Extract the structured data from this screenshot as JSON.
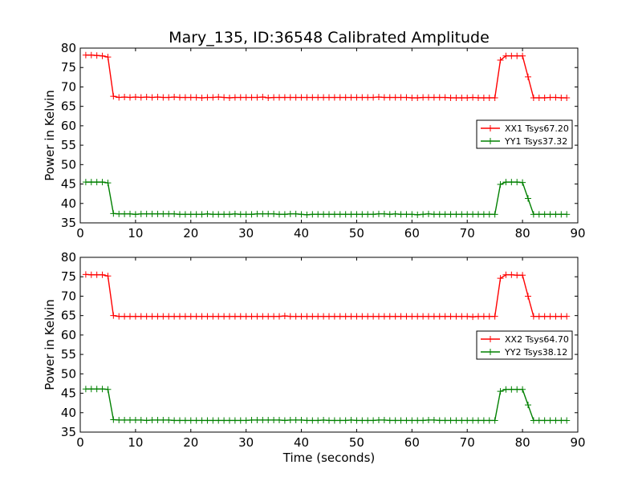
{
  "chart_data": [
    {
      "type": "line",
      "title": "Mary_135, ID:36548 Calibrated Amplitude",
      "xlabel": "",
      "ylabel": "Power in Kelvin",
      "xlim": [
        0,
        90
      ],
      "ylim": [
        35,
        80
      ],
      "xticks": [
        0,
        10,
        20,
        30,
        40,
        50,
        60,
        70,
        80,
        90
      ],
      "yticks": [
        35,
        40,
        45,
        50,
        55,
        60,
        65,
        70,
        75,
        80
      ],
      "legend_position": "right",
      "x": [
        1,
        2,
        3,
        4,
        5,
        6,
        7,
        8,
        9,
        10,
        11,
        12,
        13,
        14,
        15,
        16,
        17,
        18,
        19,
        20,
        21,
        22,
        23,
        24,
        25,
        26,
        27,
        28,
        29,
        30,
        31,
        32,
        33,
        34,
        35,
        36,
        37,
        38,
        39,
        40,
        41,
        42,
        43,
        44,
        45,
        46,
        47,
        48,
        49,
        50,
        51,
        52,
        53,
        54,
        55,
        56,
        57,
        58,
        59,
        60,
        61,
        62,
        63,
        64,
        65,
        66,
        67,
        68,
        69,
        70,
        71,
        72,
        73,
        74,
        75,
        76,
        77,
        78,
        79,
        80,
        81,
        82,
        83,
        84,
        85,
        86,
        87,
        88
      ],
      "series": [
        {
          "name": "XX1 Tsys67.20",
          "color": "#ff0000",
          "values": [
            78.2,
            78.2,
            78.1,
            78.0,
            77.7,
            67.6,
            67.3,
            67.4,
            67.3,
            67.4,
            67.3,
            67.4,
            67.3,
            67.4,
            67.3,
            67.3,
            67.4,
            67.3,
            67.3,
            67.3,
            67.3,
            67.2,
            67.3,
            67.3,
            67.4,
            67.3,
            67.2,
            67.3,
            67.3,
            67.3,
            67.3,
            67.3,
            67.4,
            67.2,
            67.3,
            67.3,
            67.3,
            67.3,
            67.3,
            67.3,
            67.3,
            67.3,
            67.3,
            67.3,
            67.3,
            67.3,
            67.3,
            67.3,
            67.3,
            67.3,
            67.3,
            67.3,
            67.3,
            67.4,
            67.3,
            67.3,
            67.3,
            67.3,
            67.3,
            67.2,
            67.2,
            67.3,
            67.3,
            67.3,
            67.3,
            67.3,
            67.2,
            67.2,
            67.2,
            67.2,
            67.3,
            67.2,
            67.2,
            67.2,
            67.2,
            76.9,
            78.0,
            78.0,
            78.0,
            78.0,
            72.6,
            67.2,
            67.2,
            67.2,
            67.3,
            67.3,
            67.2,
            67.2
          ]
        },
        {
          "name": "YY1 Tsys37.32",
          "color": "#008000",
          "values": [
            45.5,
            45.5,
            45.5,
            45.5,
            45.3,
            37.4,
            37.3,
            37.3,
            37.3,
            37.2,
            37.3,
            37.3,
            37.3,
            37.3,
            37.3,
            37.3,
            37.3,
            37.2,
            37.2,
            37.2,
            37.2,
            37.2,
            37.3,
            37.2,
            37.2,
            37.2,
            37.2,
            37.3,
            37.2,
            37.2,
            37.2,
            37.3,
            37.3,
            37.3,
            37.3,
            37.2,
            37.2,
            37.3,
            37.3,
            37.2,
            37.1,
            37.2,
            37.2,
            37.2,
            37.2,
            37.2,
            37.2,
            37.2,
            37.2,
            37.2,
            37.2,
            37.2,
            37.2,
            37.3,
            37.3,
            37.2,
            37.3,
            37.2,
            37.2,
            37.2,
            37.1,
            37.2,
            37.3,
            37.2,
            37.2,
            37.2,
            37.2,
            37.2,
            37.2,
            37.2,
            37.2,
            37.2,
            37.2,
            37.2,
            37.2,
            44.9,
            45.5,
            45.5,
            45.5,
            45.4,
            41.3,
            37.2,
            37.2,
            37.2,
            37.2,
            37.2,
            37.2,
            37.2
          ]
        }
      ]
    },
    {
      "type": "line",
      "title": "",
      "xlabel": "Time (seconds)",
      "ylabel": "Power in Kelvin",
      "xlim": [
        0,
        90
      ],
      "ylim": [
        35,
        80
      ],
      "xticks": [
        0,
        10,
        20,
        30,
        40,
        50,
        60,
        70,
        80,
        90
      ],
      "yticks": [
        35,
        40,
        45,
        50,
        55,
        60,
        65,
        70,
        75,
        80
      ],
      "legend_position": "right",
      "x": [
        1,
        2,
        3,
        4,
        5,
        6,
        7,
        8,
        9,
        10,
        11,
        12,
        13,
        14,
        15,
        16,
        17,
        18,
        19,
        20,
        21,
        22,
        23,
        24,
        25,
        26,
        27,
        28,
        29,
        30,
        31,
        32,
        33,
        34,
        35,
        36,
        37,
        38,
        39,
        40,
        41,
        42,
        43,
        44,
        45,
        46,
        47,
        48,
        49,
        50,
        51,
        52,
        53,
        54,
        55,
        56,
        57,
        58,
        59,
        60,
        61,
        62,
        63,
        64,
        65,
        66,
        67,
        68,
        69,
        70,
        71,
        72,
        73,
        74,
        75,
        76,
        77,
        78,
        79,
        80,
        81,
        82,
        83,
        84,
        85,
        86,
        87,
        88
      ],
      "series": [
        {
          "name": "XX2 Tsys64.70",
          "color": "#ff0000",
          "values": [
            75.6,
            75.5,
            75.5,
            75.5,
            75.2,
            65.0,
            64.8,
            64.8,
            64.8,
            64.8,
            64.8,
            64.8,
            64.8,
            64.8,
            64.8,
            64.8,
            64.8,
            64.8,
            64.8,
            64.8,
            64.8,
            64.8,
            64.8,
            64.8,
            64.8,
            64.8,
            64.8,
            64.8,
            64.8,
            64.8,
            64.8,
            64.8,
            64.8,
            64.8,
            64.8,
            64.8,
            64.9,
            64.8,
            64.8,
            64.8,
            64.8,
            64.8,
            64.8,
            64.8,
            64.8,
            64.8,
            64.8,
            64.8,
            64.8,
            64.8,
            64.8,
            64.8,
            64.8,
            64.8,
            64.8,
            64.8,
            64.8,
            64.8,
            64.8,
            64.8,
            64.8,
            64.8,
            64.8,
            64.8,
            64.8,
            64.8,
            64.8,
            64.8,
            64.8,
            64.8,
            64.7,
            64.8,
            64.8,
            64.8,
            64.8,
            74.6,
            75.5,
            75.5,
            75.4,
            75.4,
            70.0,
            64.8,
            64.8,
            64.8,
            64.8,
            64.8,
            64.8,
            64.8
          ]
        },
        {
          "name": "YY2 Tsys38.12",
          "color": "#008000",
          "values": [
            46.1,
            46.1,
            46.1,
            46.1,
            46.0,
            38.2,
            38.1,
            38.1,
            38.1,
            38.1,
            38.1,
            38.0,
            38.1,
            38.1,
            38.1,
            38.1,
            38.0,
            38.0,
            38.0,
            38.0,
            38.0,
            38.0,
            38.0,
            38.0,
            38.0,
            38.0,
            38.0,
            38.0,
            38.0,
            38.0,
            38.1,
            38.1,
            38.1,
            38.1,
            38.1,
            38.1,
            38.0,
            38.1,
            38.1,
            38.1,
            38.0,
            38.0,
            38.0,
            38.1,
            38.0,
            38.0,
            38.0,
            38.0,
            38.1,
            38.0,
            38.0,
            38.0,
            38.0,
            38.1,
            38.1,
            38.0,
            38.0,
            38.0,
            38.0,
            38.0,
            38.0,
            38.0,
            38.1,
            38.1,
            38.0,
            38.0,
            38.0,
            38.0,
            38.0,
            38.0,
            38.0,
            38.0,
            38.0,
            38.0,
            38.0,
            45.5,
            46.0,
            46.0,
            46.0,
            46.0,
            42.0,
            38.0,
            38.0,
            38.0,
            38.0,
            38.0,
            38.0,
            38.0
          ]
        }
      ]
    }
  ]
}
